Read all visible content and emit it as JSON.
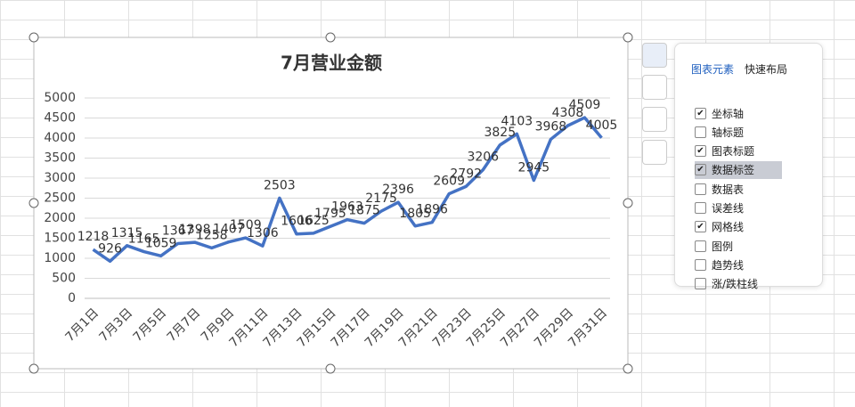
{
  "chart_data": {
    "type": "line",
    "title": "7月营业金额",
    "categories": [
      "7月1日",
      null,
      "7月3日",
      null,
      "7月5日",
      null,
      "7月7日",
      null,
      "7月9日",
      null,
      "7月11日",
      null,
      "7月13日",
      null,
      "7月15日",
      null,
      "7月17日",
      null,
      "7月19日",
      null,
      "7月21日",
      null,
      "7月23日",
      null,
      "7月25日",
      null,
      "7月27日",
      null,
      "7月29日",
      null,
      "7月31日"
    ],
    "series": [
      {
        "color": "#4472c4",
        "values": [
          1218,
          926,
          1315,
          1165,
          1059,
          1367,
          1398,
          1258,
          1407,
          1509,
          1306,
          2503,
          1606,
          1625,
          1795,
          1963,
          1875,
          2175,
          2396,
          1805,
          1896,
          2609,
          2792,
          3206,
          3825,
          4103,
          2945,
          3968,
          4308,
          4509,
          4005
        ]
      }
    ],
    "ylim": [
      0,
      5000
    ],
    "yticks": [
      0,
      500,
      1000,
      1500,
      2000,
      2500,
      3000,
      3500,
      4000,
      4500,
      5000
    ],
    "grid": true,
    "data_labels": true
  },
  "panel": {
    "tabs": [
      "图表元素",
      "快速布局"
    ],
    "items": [
      {
        "label": "坐标轴",
        "checked": true
      },
      {
        "label": "轴标题",
        "checked": false
      },
      {
        "label": "图表标题",
        "checked": true
      },
      {
        "label": "数据标签",
        "checked": true
      },
      {
        "label": "数据表",
        "checked": false
      },
      {
        "label": "误差线",
        "checked": false
      },
      {
        "label": "网格线",
        "checked": true
      },
      {
        "label": "图例",
        "checked": false
      },
      {
        "label": "趋势线",
        "checked": false
      },
      {
        "label": "涨/跌柱线",
        "checked": false
      }
    ]
  }
}
